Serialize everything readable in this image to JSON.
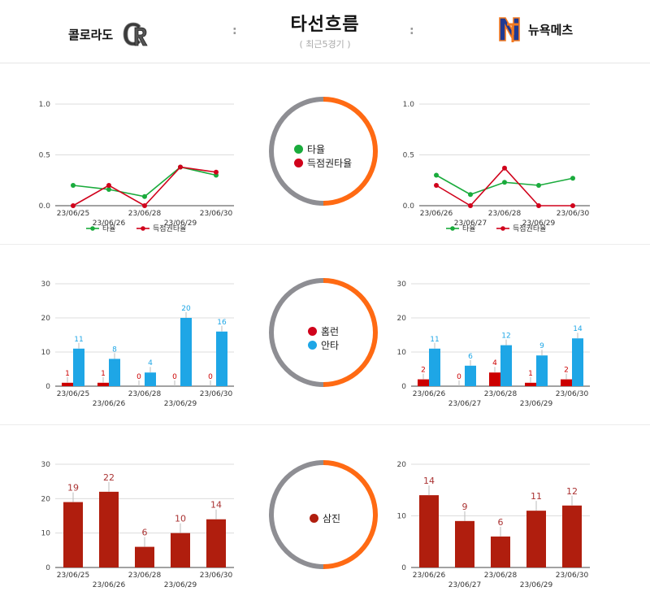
{
  "header": {
    "title": "타선흐름",
    "subtitle": "( 최근5경기 )",
    "home_team": "콜로라도",
    "away_team": "뉴욕메츠",
    "separator": ":"
  },
  "rings": [
    {
      "legend": [
        {
          "label": "타율",
          "color": "#1aab3c"
        },
        {
          "label": "득점권타율",
          "color": "#d0021b"
        }
      ]
    },
    {
      "legend": [
        {
          "label": "홈런",
          "color": "#d0021b"
        },
        {
          "label": "안타",
          "color": "#1ea6e6"
        }
      ]
    },
    {
      "legend": [
        {
          "label": "삼진",
          "color": "#b01e0e"
        }
      ]
    }
  ],
  "colors": {
    "ring_left": "#8e8e93",
    "ring_right": "#ff6a13"
  },
  "chart_data": [
    {
      "type": "line",
      "team": "콜로라도",
      "categories": [
        "23/06/25",
        "23/06/26",
        "23/06/28",
        "23/06/29",
        "23/06/30"
      ],
      "ylim": [
        0,
        1.0
      ],
      "yticks": [
        "0.0",
        "0.5",
        "1.0"
      ],
      "series": [
        {
          "name": "타율",
          "values": [
            0.2,
            0.16,
            0.09,
            0.38,
            0.3
          ],
          "color": "#1aab3c"
        },
        {
          "name": "득점권타율",
          "values": [
            0.0,
            0.2,
            0.0,
            0.38,
            0.33
          ],
          "color": "#d0021b"
        }
      ],
      "legend_position": "bottom"
    },
    {
      "type": "line",
      "team": "뉴욕메츠",
      "categories": [
        "23/06/26",
        "23/06/27",
        "23/06/28",
        "23/06/29",
        "23/06/30"
      ],
      "ylim": [
        0,
        1.0
      ],
      "yticks": [
        "0.0",
        "0.5",
        "1.0"
      ],
      "series": [
        {
          "name": "타율",
          "values": [
            0.3,
            0.11,
            0.23,
            0.2,
            0.27
          ],
          "color": "#1aab3c"
        },
        {
          "name": "득점권타율",
          "values": [
            0.2,
            0.0,
            0.37,
            0.0,
            0.0
          ],
          "color": "#d0021b"
        }
      ],
      "legend_position": "bottom"
    },
    {
      "type": "bar",
      "team": "콜로라도",
      "categories": [
        "23/06/25",
        "23/06/26",
        "23/06/28",
        "23/06/29",
        "23/06/30"
      ],
      "ylim": [
        0,
        30
      ],
      "yticks": [
        "0",
        "10",
        "20",
        "30"
      ],
      "series": [
        {
          "name": "홈런",
          "values": [
            1,
            1,
            0,
            0,
            0
          ],
          "color": "#cc0000"
        },
        {
          "name": "안타",
          "values": [
            11,
            8,
            4,
            20,
            16
          ],
          "color": "#1ea6e6"
        }
      ]
    },
    {
      "type": "bar",
      "team": "뉴욕메츠",
      "categories": [
        "23/06/26",
        "23/06/27",
        "23/06/28",
        "23/06/29",
        "23/06/30"
      ],
      "ylim": [
        0,
        30
      ],
      "yticks": [
        "0",
        "10",
        "20",
        "30"
      ],
      "series": [
        {
          "name": "홈런",
          "values": [
            2,
            0,
            4,
            1,
            2
          ],
          "color": "#cc0000"
        },
        {
          "name": "안타",
          "values": [
            11,
            6,
            12,
            9,
            14
          ],
          "color": "#1ea6e6"
        }
      ]
    },
    {
      "type": "bar",
      "team": "콜로라도",
      "categories": [
        "23/06/25",
        "23/06/26",
        "23/06/28",
        "23/06/29",
        "23/06/30"
      ],
      "ylim": [
        0,
        30
      ],
      "yticks": [
        "0",
        "10",
        "20",
        "30"
      ],
      "series": [
        {
          "name": "삼진",
          "values": [
            19,
            22,
            6,
            10,
            14
          ],
          "color": "#b01e0e"
        }
      ]
    },
    {
      "type": "bar",
      "team": "뉴욕메츠",
      "categories": [
        "23/06/26",
        "23/06/27",
        "23/06/28",
        "23/06/29",
        "23/06/30"
      ],
      "ylim": [
        0,
        20
      ],
      "yticks": [
        "0",
        "10",
        "20"
      ],
      "series": [
        {
          "name": "삼진",
          "values": [
            14,
            9,
            6,
            11,
            12
          ],
          "color": "#b01e0e"
        }
      ]
    }
  ]
}
